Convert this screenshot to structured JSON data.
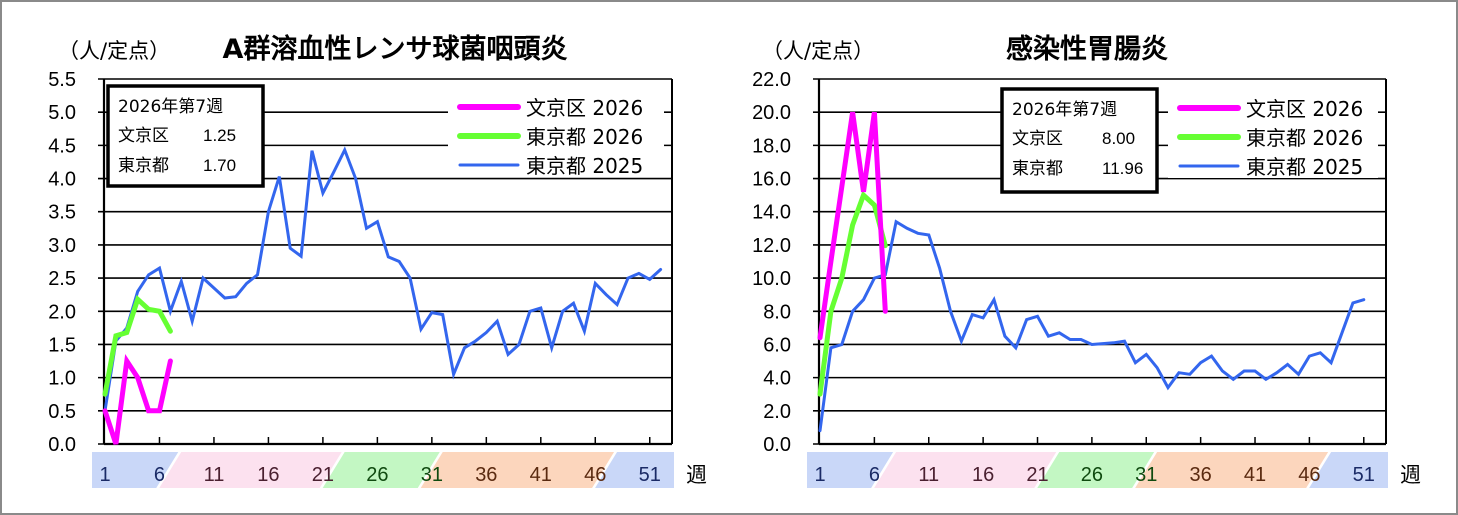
{
  "chart_data": [
    {
      "type": "line",
      "title": "A群溶血性レンサ球菌咽頭炎",
      "ylabel": "（人/定点）",
      "xlabel": "週",
      "ylim": [
        0,
        5.5
      ],
      "yticks": [
        "0.0",
        "0.5",
        "1.0",
        "1.5",
        "2.0",
        "2.5",
        "3.0",
        "3.5",
        "4.0",
        "4.5",
        "5.0",
        "5.5"
      ],
      "xticks": [
        "1",
        "6",
        "11",
        "16",
        "21",
        "26",
        "31",
        "36",
        "41",
        "46",
        "51"
      ],
      "grid": true,
      "legend_position": "upper right",
      "info_box": {
        "heading": "2026年第7週",
        "rows": [
          {
            "label": "文京区",
            "value": "1.25"
          },
          {
            "label": "東京都",
            "value": "1.70"
          }
        ]
      },
      "series": [
        {
          "name": "文京区 2026",
          "color": "#ff00ff",
          "width": 5,
          "values": [
            0.5,
            0.0,
            1.25,
            1.0,
            0.5,
            0.5,
            1.25
          ]
        },
        {
          "name": "東京都 2026",
          "color": "#66ff33",
          "width": 5,
          "values": [
            0.75,
            1.63,
            1.68,
            2.18,
            2.03,
            2.0,
            1.7
          ]
        },
        {
          "name": "東京都 2025",
          "color": "#3366ee",
          "width": 3,
          "values": [
            0.5,
            1.55,
            1.75,
            2.3,
            2.55,
            2.65,
            2.0,
            2.45,
            1.85,
            2.5,
            2.35,
            2.2,
            2.22,
            2.42,
            2.55,
            3.5,
            4.03,
            2.95,
            2.83,
            4.42,
            3.78,
            4.1,
            4.43,
            4.0,
            3.25,
            3.35,
            2.82,
            2.75,
            2.5,
            1.73,
            1.98,
            1.95,
            1.05,
            1.45,
            1.55,
            1.68,
            1.85,
            1.35,
            1.5,
            2.0,
            2.05,
            1.45,
            2.0,
            2.12,
            1.7,
            2.42,
            2.25,
            2.1,
            2.5,
            2.57,
            2.48,
            2.63
          ]
        }
      ]
    },
    {
      "type": "line",
      "title": "感染性胃腸炎",
      "ylabel": "（人/定点）",
      "xlabel": "週",
      "ylim": [
        0,
        22
      ],
      "yticks": [
        "0.0",
        "2.0",
        "4.0",
        "6.0",
        "8.0",
        "10.0",
        "12.0",
        "14.0",
        "16.0",
        "18.0",
        "20.0",
        "22.0"
      ],
      "xticks": [
        "1",
        "6",
        "11",
        "16",
        "21",
        "26",
        "31",
        "36",
        "41",
        "46",
        "51"
      ],
      "grid": true,
      "legend_position": "upper right",
      "info_box": {
        "heading": "2026年第7週",
        "rows": [
          {
            "label": "文京区",
            "value": "8.00"
          },
          {
            "label": "東京都",
            "value": "11.96"
          }
        ]
      },
      "series": [
        {
          "name": "文京区 2026",
          "color": "#ff00ff",
          "width": 5,
          "values": [
            6.4,
            11.0,
            15.5,
            20.0,
            15.2,
            20.0,
            8.0
          ]
        },
        {
          "name": "東京都 2026",
          "color": "#66ff33",
          "width": 5,
          "values": [
            3.0,
            8.0,
            10.0,
            13.2,
            15.0,
            14.4,
            11.96
          ]
        },
        {
          "name": "東京都 2025",
          "color": "#3366ee",
          "width": 3,
          "values": [
            0.8,
            5.8,
            6.0,
            8.0,
            8.7,
            10.0,
            10.2,
            13.4,
            13.0,
            12.7,
            12.6,
            10.6,
            8.0,
            6.2,
            7.8,
            7.6,
            8.7,
            6.5,
            5.8,
            7.5,
            7.7,
            6.5,
            6.7,
            6.3,
            6.3,
            6.0,
            6.05,
            6.1,
            6.2,
            4.9,
            5.4,
            4.6,
            3.4,
            4.3,
            4.2,
            4.9,
            5.3,
            4.4,
            3.9,
            4.4,
            4.4,
            3.9,
            4.3,
            4.8,
            4.2,
            5.3,
            5.5,
            4.9,
            6.7,
            8.5,
            8.7
          ]
        }
      ]
    }
  ],
  "season_bands": [
    {
      "from": 1,
      "to": 8,
      "color": "#c9d7f8"
    },
    {
      "from": 8,
      "to": 23,
      "color": "#fce1ef"
    },
    {
      "from": 23,
      "to": 32,
      "color": "#c3f7c3"
    },
    {
      "from": 32,
      "to": 48,
      "color": "#fcd6bd"
    },
    {
      "from": 48,
      "to": 53,
      "color": "#c9d7f8"
    }
  ],
  "tick_label_colors": [
    "#1a2a66",
    "#1a2a66",
    "#4a2030",
    "#4a2030",
    "#4a2030",
    "#0f4a0f",
    "#0f4a0f",
    "#5a2a10",
    "#5a2a10",
    "#5a2a10",
    "#1a2a66"
  ]
}
